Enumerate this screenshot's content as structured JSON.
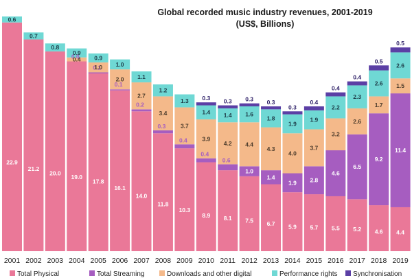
{
  "chart_data": {
    "type": "bar",
    "stacked": true,
    "title": "Global recorded music industry revenues, 2001-2019",
    "subtitle": "(US$, Billions)",
    "categories": [
      "2001",
      "2002",
      "2003",
      "2004",
      "2005",
      "2006",
      "2007",
      "2008",
      "2009",
      "2010",
      "2011",
      "2012",
      "2013",
      "2014",
      "2015",
      "2016",
      "2017",
      "2018",
      "2019"
    ],
    "series": [
      {
        "name": "Total Physical",
        "color": "#ea7898",
        "values": [
          22.9,
          21.2,
          20.0,
          19.0,
          17.8,
          16.1,
          14.0,
          11.8,
          10.3,
          8.9,
          8.1,
          7.5,
          6.7,
          5.9,
          5.7,
          5.5,
          5.2,
          4.6,
          4.4
        ]
      },
      {
        "name": "Total Streaming",
        "color": "#a65dc0",
        "values": [
          null,
          null,
          null,
          0.0,
          0.1,
          0.1,
          0.2,
          0.3,
          0.4,
          0.4,
          0.6,
          1.0,
          1.4,
          1.9,
          2.8,
          4.6,
          6.5,
          9.2,
          11.4
        ]
      },
      {
        "name": "Downloads and other digital",
        "color": "#f4b98a",
        "values": [
          null,
          null,
          null,
          0.4,
          1.0,
          2.0,
          2.7,
          3.4,
          3.7,
          3.9,
          4.2,
          4.4,
          4.3,
          4.0,
          3.7,
          3.2,
          2.6,
          1.7,
          1.5
        ]
      },
      {
        "name": "Performance rights",
        "color": "#6fd8d4",
        "values": [
          0.6,
          0.7,
          0.8,
          0.9,
          0.9,
          1.0,
          1.1,
          1.2,
          1.3,
          1.4,
          1.4,
          1.6,
          1.8,
          1.9,
          1.9,
          2.2,
          2.3,
          2.6,
          2.6
        ]
      },
      {
        "name": "Synchronisation",
        "color": "#5b3fa5",
        "values": [
          null,
          null,
          null,
          null,
          null,
          null,
          null,
          null,
          null,
          0.3,
          0.3,
          0.3,
          0.3,
          0.3,
          0.4,
          0.4,
          0.4,
          0.5,
          0.5
        ]
      }
    ],
    "legend_position": "bottom",
    "grid": false
  }
}
